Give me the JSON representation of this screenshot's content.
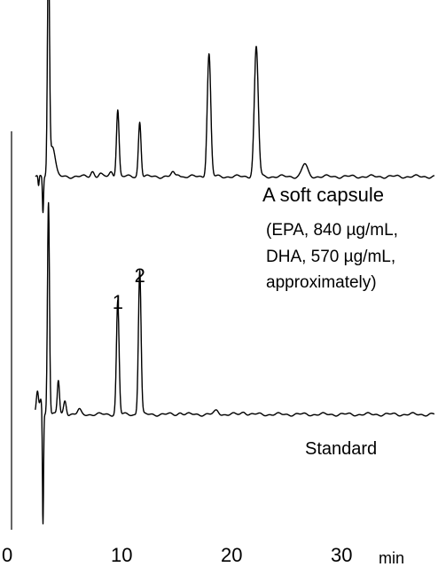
{
  "chart_data": {
    "type": "line",
    "x_axis": {
      "ticks": [
        0,
        10,
        20,
        30
      ],
      "tick_labels": [
        "0",
        "10",
        "20",
        "30"
      ],
      "unit": "min",
      "range": [
        0,
        40
      ]
    },
    "series": [
      {
        "name": "A soft capsule",
        "note": [
          "(EPA, 840 µg/mL,",
          "DHA, 570 µg/mL,",
          "approximately)"
        ],
        "peaks": [
          {
            "t": 2.3,
            "h": -0.12,
            "w": 0.05
          },
          {
            "t": 2.7,
            "h": -0.4,
            "w": 0.05
          },
          {
            "t": 3.2,
            "h": 2.55,
            "w": 0.09
          },
          {
            "t": 3.55,
            "h": 0.35,
            "w": 0.25
          },
          {
            "t": 7.2,
            "h": 0.06,
            "w": 0.15
          },
          {
            "t": 7.9,
            "h": 0.03,
            "w": 0.15
          },
          {
            "t": 8.9,
            "h": 0.05,
            "w": 0.15
          },
          {
            "t": 9.5,
            "h": 0.76,
            "w": 0.12
          },
          {
            "t": 11.5,
            "h": 0.62,
            "w": 0.12
          },
          {
            "t": 14.5,
            "h": 0.04,
            "w": 0.15
          },
          {
            "t": 15.0,
            "h": 0.03,
            "w": 0.15
          },
          {
            "t": 17.8,
            "h": 1.38,
            "w": 0.16
          },
          {
            "t": 22.1,
            "h": 1.46,
            "w": 0.18
          },
          {
            "t": 26.5,
            "h": 0.14,
            "w": 0.25
          }
        ]
      },
      {
        "name": "Standard",
        "peak_labels": [
          {
            "t": 9.5,
            "label": "1"
          },
          {
            "t": 11.5,
            "label": "2"
          }
        ],
        "peaks": [
          {
            "t": 2.2,
            "h": 0.25,
            "w": 0.1
          },
          {
            "t": 2.5,
            "h": 0.18,
            "w": 0.1
          },
          {
            "t": 2.7,
            "h": -1.25,
            "w": 0.05
          },
          {
            "t": 3.2,
            "h": 2.4,
            "w": 0.09
          },
          {
            "t": 4.1,
            "h": 0.38,
            "w": 0.1
          },
          {
            "t": 4.7,
            "h": 0.16,
            "w": 0.12
          },
          {
            "t": 6.0,
            "h": 0.05,
            "w": 0.15
          },
          {
            "t": 9.5,
            "h": 1.28,
            "w": 0.12
          },
          {
            "t": 11.5,
            "h": 1.63,
            "w": 0.12
          },
          {
            "t": 15.2,
            "h": 0.02,
            "w": 0.2
          },
          {
            "t": 18.5,
            "h": 0.04,
            "w": 0.2
          },
          {
            "t": 21.0,
            "h": 0.03,
            "w": 0.2
          }
        ]
      }
    ]
  }
}
